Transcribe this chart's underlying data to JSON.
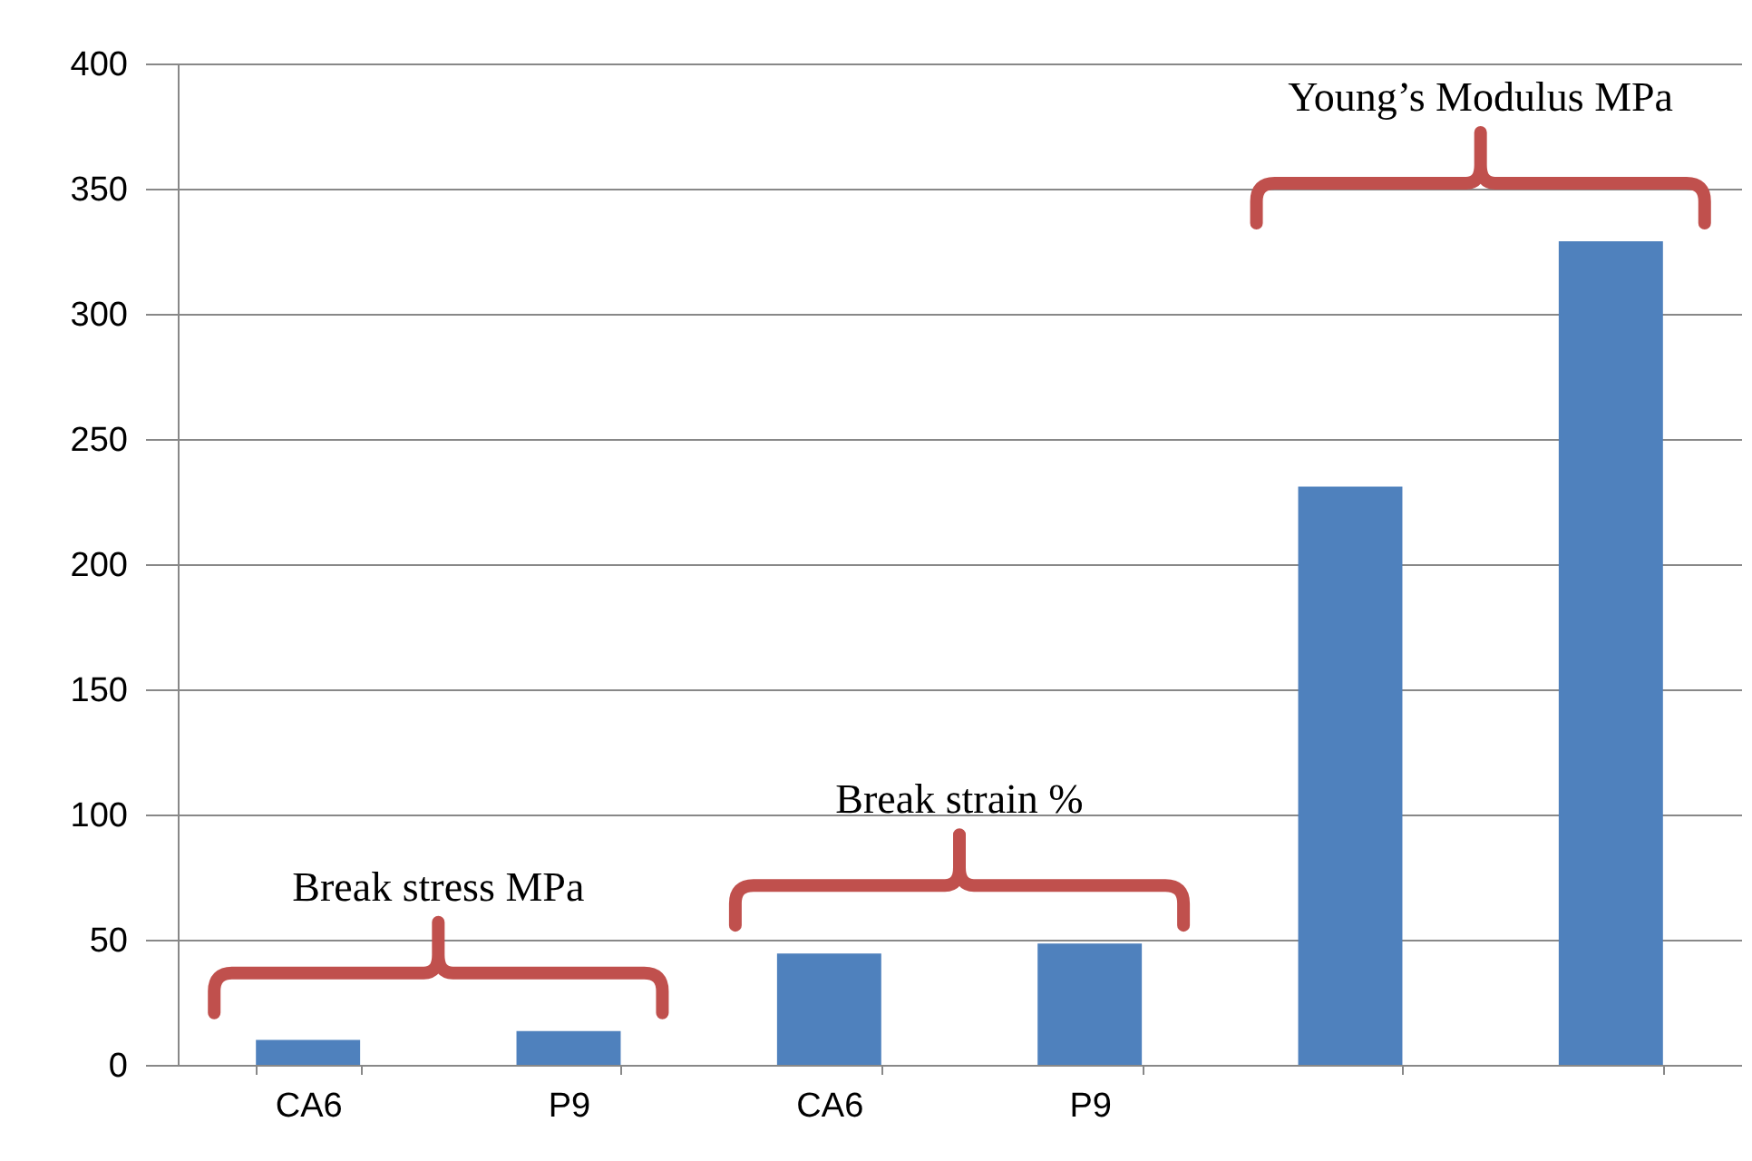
{
  "chart_data": {
    "type": "bar",
    "categories": [
      "CA6",
      "P9",
      "CA6",
      "P9",
      null,
      null
    ],
    "values": [
      10,
      13.5,
      44.5,
      48.5,
      231,
      329
    ],
    "color": "#4f81bd",
    "ylim": [
      0,
      400
    ],
    "yticks": [
      0,
      50,
      100,
      150,
      200,
      250,
      300,
      350,
      400
    ],
    "grid": "y",
    "annotations": [
      "Break stress MPa",
      "Break strain %",
      "Young’s Modulus MPa"
    ]
  }
}
